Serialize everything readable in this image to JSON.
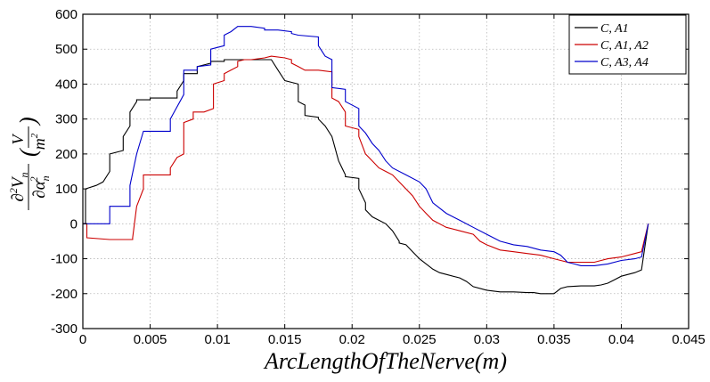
{
  "chart_data": {
    "type": "line",
    "title": "",
    "xlabel": "ArcLengthOfTheNerve(m)",
    "ylabel": {
      "numerator_main": "∂",
      "numerator_sup": "2",
      "numerator_var": "V",
      "numerator_sub": "n",
      "denominator_main": "∂α",
      "denominator_sub": "n",
      "denominator_sup": "2",
      "unit_numerator": "V",
      "unit_denominator_var": "m",
      "unit_denominator_sup": "2",
      "paren_open": "(",
      "paren_close": ")"
    },
    "xlim": [
      0,
      0.045
    ],
    "ylim": [
      -300,
      600
    ],
    "xticks": [
      "0",
      "0.005",
      "0.01",
      "0.015",
      "0.02",
      "0.025",
      "0.03",
      "0.035",
      "0.04",
      "0.045"
    ],
    "yticks": [
      "-300",
      "-200",
      "-100",
      "0",
      "100",
      "200",
      "300",
      "400",
      "500",
      "600"
    ],
    "grid": true,
    "legend_position": "top-right",
    "series": [
      {
        "name": "C, A1",
        "color": "#000000",
        "x": [
          0,
          0.0002,
          0.0002,
          0.001,
          0.0015,
          0.002,
          0.002,
          0.003,
          0.003,
          0.0035,
          0.0035,
          0.004,
          0.004,
          0.0045,
          0.005,
          0.005,
          0.007,
          0.007,
          0.0075,
          0.0075,
          0.0085,
          0.0085,
          0.009,
          0.0095,
          0.0095,
          0.0105,
          0.0105,
          0.0115,
          0.012,
          0.012,
          0.013,
          0.0135,
          0.014,
          0.0145,
          0.015,
          0.016,
          0.016,
          0.0165,
          0.0165,
          0.0175,
          0.0175,
          0.018,
          0.0185,
          0.019,
          0.0195,
          0.0195,
          0.0205,
          0.0205,
          0.021,
          0.021,
          0.0215,
          0.022,
          0.0225,
          0.023,
          0.0235,
          0.0235,
          0.024,
          0.0245,
          0.025,
          0.026,
          0.0265,
          0.027,
          0.028,
          0.0285,
          0.029,
          0.03,
          0.031,
          0.032,
          0.033,
          0.0335,
          0.034,
          0.0345,
          0.035,
          0.0355,
          0.036,
          0.037,
          0.038,
          0.0385,
          0.039,
          0.0395,
          0.04,
          0.041,
          0.0415,
          0.042
        ],
        "y": [
          0,
          0,
          100,
          110,
          120,
          150,
          200,
          210,
          250,
          280,
          320,
          350,
          355,
          355,
          355,
          360,
          360,
          380,
          410,
          430,
          430,
          450,
          455,
          460,
          465,
          465,
          470,
          470,
          470,
          470,
          470,
          470,
          470,
          440,
          410,
          400,
          350,
          340,
          310,
          305,
          300,
          280,
          250,
          180,
          140,
          135,
          130,
          100,
          60,
          40,
          20,
          10,
          0,
          -20,
          -50,
          -55,
          -60,
          -80,
          -100,
          -130,
          -140,
          -145,
          -155,
          -165,
          -180,
          -190,
          -195,
          -195,
          -197,
          -197,
          -200,
          -200,
          -200,
          -185,
          -180,
          -178,
          -178,
          -175,
          -170,
          -160,
          -150,
          -140,
          -132,
          0
        ]
      },
      {
        "name": "C, A1, A2",
        "color": "#cc0000",
        "x": [
          0,
          0.0003,
          0.0003,
          0.002,
          0.0037,
          0.0037,
          0.004,
          0.0045,
          0.0045,
          0.0065,
          0.0065,
          0.007,
          0.0075,
          0.0075,
          0.0082,
          0.0082,
          0.009,
          0.0097,
          0.0097,
          0.0105,
          0.0105,
          0.011,
          0.0115,
          0.0115,
          0.012,
          0.0125,
          0.0135,
          0.014,
          0.015,
          0.0155,
          0.0155,
          0.016,
          0.0165,
          0.0175,
          0.0185,
          0.0185,
          0.019,
          0.0195,
          0.0195,
          0.0205,
          0.0205,
          0.021,
          0.0215,
          0.022,
          0.0225,
          0.023,
          0.0235,
          0.024,
          0.0245,
          0.025,
          0.0255,
          0.026,
          0.027,
          0.028,
          0.029,
          0.0295,
          0.03,
          0.031,
          0.032,
          0.033,
          0.034,
          0.035,
          0.0355,
          0.036,
          0.037,
          0.038,
          0.0385,
          0.039,
          0.04,
          0.041,
          0.0415,
          0.042
        ],
        "y": [
          0,
          0,
          -40,
          -45,
          -45,
          -40,
          50,
          100,
          140,
          140,
          160,
          190,
          200,
          290,
          300,
          320,
          320,
          330,
          400,
          410,
          430,
          440,
          450,
          465,
          470,
          470,
          475,
          480,
          475,
          470,
          460,
          450,
          440,
          440,
          435,
          360,
          350,
          320,
          280,
          270,
          250,
          200,
          180,
          160,
          150,
          140,
          120,
          100,
          80,
          50,
          30,
          10,
          -10,
          -20,
          -30,
          -50,
          -60,
          -75,
          -80,
          -85,
          -90,
          -100,
          -105,
          -110,
          -110,
          -110,
          -105,
          -100,
          -95,
          -85,
          -80,
          0
        ]
      },
      {
        "name": "C, A3, A4",
        "color": "#0000cc",
        "x": [
          0,
          0.0002,
          0.0002,
          0.002,
          0.002,
          0.0025,
          0.0035,
          0.0035,
          0.004,
          0.0045,
          0.0045,
          0.0065,
          0.0065,
          0.0075,
          0.0075,
          0.0085,
          0.0085,
          0.0095,
          0.0095,
          0.0105,
          0.0105,
          0.011,
          0.0115,
          0.0115,
          0.0125,
          0.0135,
          0.0135,
          0.0145,
          0.0155,
          0.0155,
          0.016,
          0.0175,
          0.0175,
          0.018,
          0.0185,
          0.0185,
          0.0195,
          0.0195,
          0.0205,
          0.0205,
          0.021,
          0.0215,
          0.022,
          0.0225,
          0.023,
          0.024,
          0.025,
          0.0255,
          0.026,
          0.027,
          0.028,
          0.029,
          0.03,
          0.031,
          0.032,
          0.033,
          0.034,
          0.035,
          0.0355,
          0.036,
          0.0365,
          0.037,
          0.038,
          0.039,
          0.04,
          0.041,
          0.0415,
          0.042
        ],
        "y": [
          0,
          0,
          0,
          0,
          50,
          50,
          50,
          110,
          200,
          265,
          265,
          265,
          300,
          370,
          440,
          440,
          450,
          455,
          500,
          510,
          540,
          550,
          565,
          565,
          565,
          560,
          555,
          555,
          550,
          545,
          540,
          535,
          510,
          480,
          470,
          390,
          385,
          350,
          330,
          280,
          260,
          230,
          210,
          180,
          160,
          140,
          120,
          100,
          60,
          30,
          10,
          -10,
          -30,
          -50,
          -60,
          -65,
          -75,
          -80,
          -90,
          -110,
          -115,
          -120,
          -120,
          -115,
          -105,
          -100,
          -95,
          0
        ]
      }
    ]
  }
}
